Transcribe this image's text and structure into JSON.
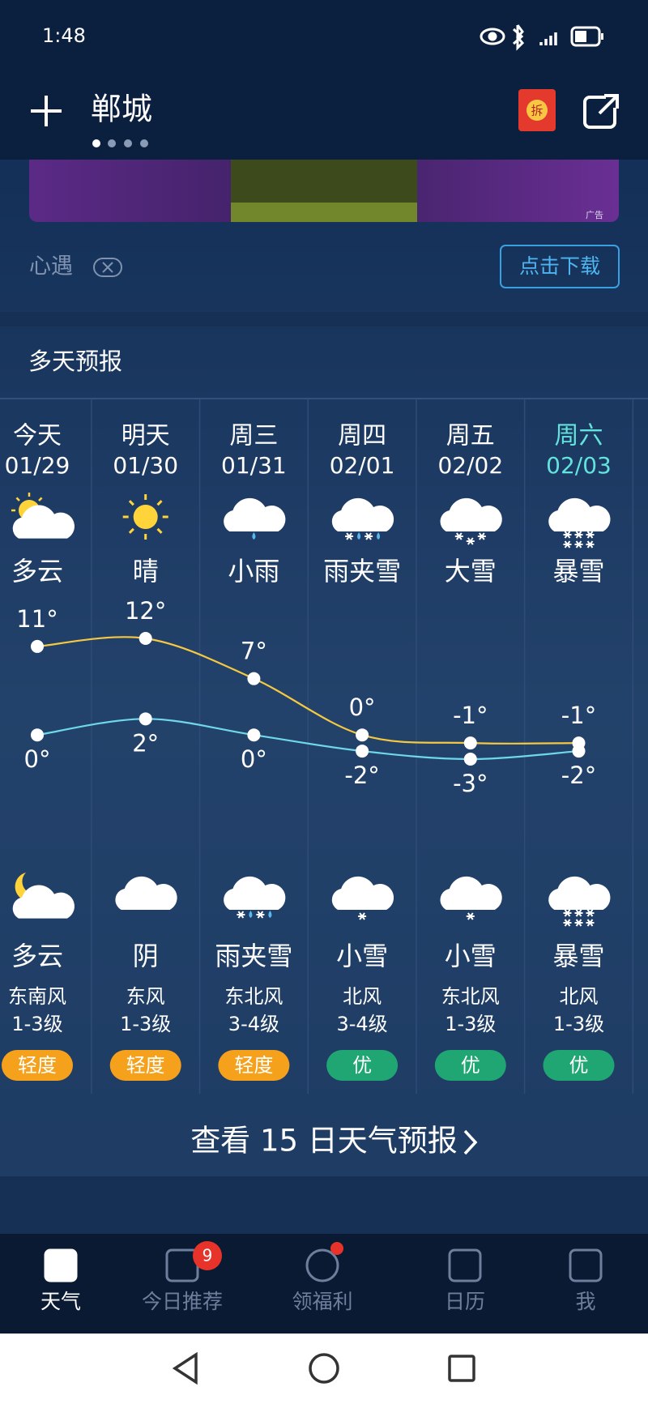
{
  "status_bar": {
    "time": "1:48"
  },
  "header": {
    "city": "郸城",
    "red_packet": "拆"
  },
  "ad": {
    "tag": "广告",
    "app_name": "心遇",
    "button": "点击下载"
  },
  "forecast": {
    "title": "多天预报",
    "high_color": "#f5c842",
    "low_color": "#6fd8e8",
    "days": [
      {
        "name": "今天",
        "date": "01/29",
        "color": "#ffffff",
        "day_icon": "partly-cloudy",
        "day_weather": "多云",
        "high": 11,
        "high_label": "11°",
        "low": 0,
        "low_label": "0°",
        "night_icon": "partly-cloudy-night",
        "night_weather": "多云",
        "wind_dir": "东南风",
        "wind_level": "1-3级",
        "aqi": "轻度",
        "aqi_color": "#f5a11c"
      },
      {
        "name": "明天",
        "date": "01/30",
        "color": "#ffffff",
        "day_icon": "sunny",
        "day_weather": "晴",
        "high": 12,
        "high_label": "12°",
        "low": 2,
        "low_label": "2°",
        "night_icon": "cloudy",
        "night_weather": "阴",
        "wind_dir": "东风",
        "wind_level": "1-3级",
        "aqi": "轻度",
        "aqi_color": "#f5a11c"
      },
      {
        "name": "周三",
        "date": "01/31",
        "color": "#ffffff",
        "day_icon": "rain",
        "day_weather": "小雨",
        "high": 7,
        "high_label": "7°",
        "low": 0,
        "low_label": "0°",
        "night_icon": "sleet",
        "night_weather": "雨夹雪",
        "wind_dir": "东北风",
        "wind_level": "3-4级",
        "aqi": "轻度",
        "aqi_color": "#f5a11c"
      },
      {
        "name": "周四",
        "date": "02/01",
        "color": "#ffffff",
        "day_icon": "sleet",
        "day_weather": "雨夹雪",
        "high": 0,
        "high_label": "0°",
        "low": -2,
        "low_label": "-2°",
        "night_icon": "snow",
        "night_weather": "小雪",
        "wind_dir": "北风",
        "wind_level": "3-4级",
        "aqi": "优",
        "aqi_color": "#1fa673"
      },
      {
        "name": "周五",
        "date": "02/02",
        "color": "#ffffff",
        "day_icon": "heavy-snow",
        "day_weather": "大雪",
        "high": -1,
        "high_label": "-1°",
        "low": -3,
        "low_label": "-3°",
        "night_icon": "snow",
        "night_weather": "小雪",
        "wind_dir": "东北风",
        "wind_level": "1-3级",
        "aqi": "优",
        "aqi_color": "#1fa673"
      },
      {
        "name": "周六",
        "date": "02/03",
        "color": "#62e3dc",
        "day_icon": "storm-snow",
        "day_weather": "暴雪",
        "high": -1,
        "high_label": "-1°",
        "low": -2,
        "low_label": "-2°",
        "night_icon": "storm-snow",
        "night_weather": "暴雪",
        "wind_dir": "北风",
        "wind_level": "1-3级",
        "aqi": "优",
        "aqi_color": "#1fa673"
      }
    ],
    "more_link": "查看 15 日天气预报"
  },
  "tab_bar": {
    "tabs": [
      {
        "label": "天气",
        "active": true
      },
      {
        "label": "今日推荐",
        "active": false,
        "badge": "9"
      },
      {
        "label": "领福利",
        "active": false,
        "dot": true
      },
      {
        "label": "日历",
        "active": false
      },
      {
        "label": "我",
        "active": false
      }
    ]
  }
}
